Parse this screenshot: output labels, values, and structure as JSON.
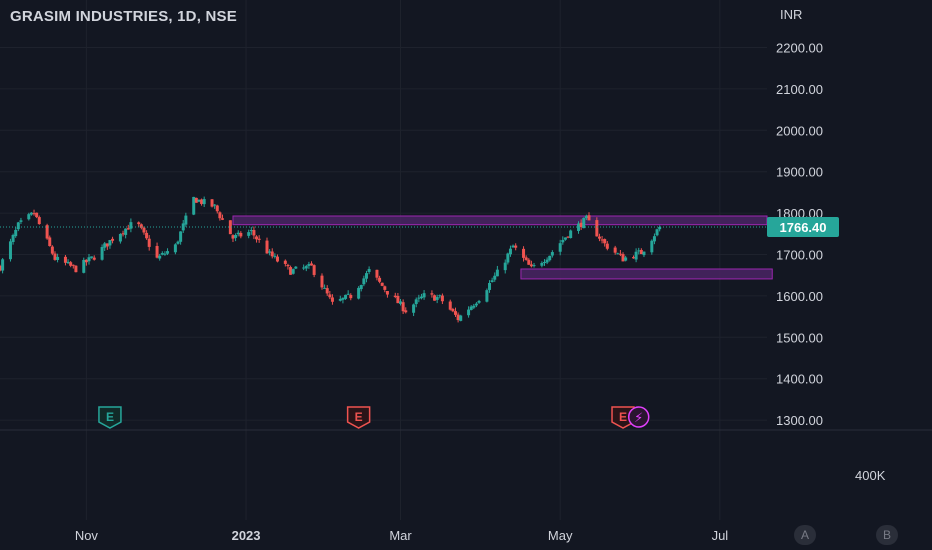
{
  "header": {
    "title": "GRASIM INDUSTRIES, 1D, NSE"
  },
  "price_scale": {
    "currency": "INR",
    "volume_label": "400K"
  },
  "buttons": {
    "a_label": "A",
    "b_label": "B"
  },
  "colors": {
    "background": "#131722",
    "grid": "#1e222d",
    "up": "#26a69a",
    "down": "#ef5350",
    "zone_fill": "#4a2464",
    "zone_border": "#9c27b0",
    "price_tag": "#26a69a",
    "earnings_green": "#26a69a",
    "earnings_red": "#ef5350",
    "dividend": "#e040fb"
  },
  "chart_data": {
    "type": "candlestick",
    "title": "GRASIM INDUSTRIES, 1D, NSE",
    "ylim": [
      1270,
      2260
    ],
    "y_ticks": [
      "2200.00",
      "2100.00",
      "2000.00",
      "1900.00",
      "1800.00",
      "1700.00",
      "1600.00",
      "1500.00",
      "1400.00",
      "1300.00"
    ],
    "x_ticks": [
      {
        "label": "Nov",
        "date": "2022-11-01"
      },
      {
        "label": "2023",
        "date": "2023-01-01"
      },
      {
        "label": "Mar",
        "date": "2023-03-01"
      },
      {
        "label": "May",
        "date": "2023-05-01"
      },
      {
        "label": "Jul",
        "date": "2023-07-01"
      }
    ],
    "x_range": [
      "2022-09-29",
      "2023-07-19"
    ],
    "last_price": 1766.4,
    "last_price_label": "1766.40",
    "anchors": [
      {
        "date": "2022-09-29",
        "price": 1670
      },
      {
        "date": "2022-10-06",
        "price": 1770
      },
      {
        "date": "2022-10-12",
        "price": 1800
      },
      {
        "date": "2022-10-20",
        "price": 1690
      },
      {
        "date": "2022-10-28",
        "price": 1665
      },
      {
        "date": "2022-11-04",
        "price": 1695
      },
      {
        "date": "2022-11-12",
        "price": 1745
      },
      {
        "date": "2022-11-20",
        "price": 1780
      },
      {
        "date": "2022-11-28",
        "price": 1690
      },
      {
        "date": "2022-12-05",
        "price": 1720
      },
      {
        "date": "2022-12-12",
        "price": 1835
      },
      {
        "date": "2022-12-20",
        "price": 1815
      },
      {
        "date": "2022-12-27",
        "price": 1740
      },
      {
        "date": "2023-01-03",
        "price": 1755
      },
      {
        "date": "2023-01-10",
        "price": 1700
      },
      {
        "date": "2023-01-18",
        "price": 1660
      },
      {
        "date": "2023-01-26",
        "price": 1670
      },
      {
        "date": "2023-02-03",
        "price": 1580
      },
      {
        "date": "2023-02-10",
        "price": 1600
      },
      {
        "date": "2023-02-17",
        "price": 1660
      },
      {
        "date": "2023-02-24",
        "price": 1610
      },
      {
        "date": "2023-03-03",
        "price": 1565
      },
      {
        "date": "2023-03-10",
        "price": 1600
      },
      {
        "date": "2023-03-16",
        "price": 1595
      },
      {
        "date": "2023-03-23",
        "price": 1545
      },
      {
        "date": "2023-03-31",
        "price": 1595
      },
      {
        "date": "2023-04-07",
        "price": 1655
      },
      {
        "date": "2023-04-13",
        "price": 1720
      },
      {
        "date": "2023-04-20",
        "price": 1665
      },
      {
        "date": "2023-04-27",
        "price": 1700
      },
      {
        "date": "2023-05-04",
        "price": 1750
      },
      {
        "date": "2023-05-11",
        "price": 1785
      },
      {
        "date": "2023-05-18",
        "price": 1725
      },
      {
        "date": "2023-05-25",
        "price": 1690
      },
      {
        "date": "2023-06-01",
        "price": 1705
      },
      {
        "date": "2023-06-08",
        "price": 1766.4
      }
    ],
    "zones": [
      {
        "name": "resistance",
        "from": "2022-12-27",
        "to": "2023-07-19",
        "price_low": 1772,
        "price_high": 1793
      },
      {
        "name": "support",
        "from": "2023-04-16",
        "to": "2023-07-21",
        "price_low": 1641,
        "price_high": 1665
      }
    ],
    "events": [
      {
        "type": "earnings",
        "label": "E",
        "date": "2022-11-10",
        "color": "green"
      },
      {
        "type": "earnings",
        "label": "E",
        "date": "2023-02-13",
        "color": "red"
      },
      {
        "type": "earnings",
        "label": "E",
        "date": "2023-05-25",
        "color": "red"
      },
      {
        "type": "dividend",
        "label": "⚡",
        "date": "2023-05-31",
        "color": "purple"
      }
    ]
  }
}
